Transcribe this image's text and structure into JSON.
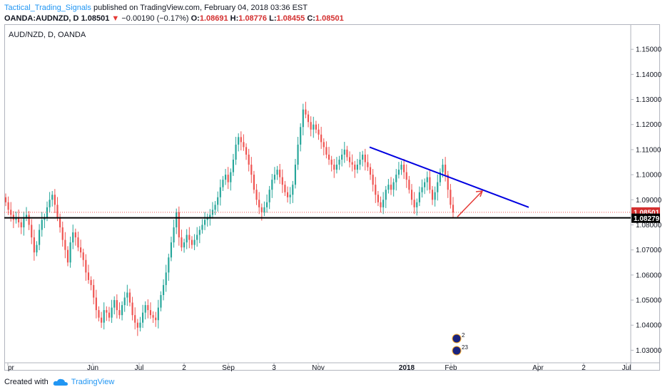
{
  "header": {
    "author": "Tactical_Trading_Signals",
    "published_text": "published on TradingView.com, February 04, 2018 03:36 EST",
    "symbol_line": "OANDA:AUDNZD, D",
    "last": "1.08501",
    "change": "−0.00190 (−0.17%)",
    "o_label": "O:",
    "o": "1.08691",
    "h_label": "H:",
    "h": "1.08776",
    "l_label": "L:",
    "l": "1.08455",
    "c_label": "C:",
    "c": "1.08501"
  },
  "chart_symbol_label": "AUD/NZD, D, OANDA",
  "footer": {
    "created_with": "Created with",
    "brand": "TradingView"
  },
  "colors": {
    "up": "#26a69a",
    "down": "#ef5350",
    "trendline": "#0000e0",
    "support": "#000000",
    "arrow": "#e53935",
    "price_tag": "#d32f2f"
  },
  "chart_data": {
    "type": "candlestick",
    "ylim": [
      1.025,
      1.16
    ],
    "y_ticks": [
      "1.03000",
      "1.04000",
      "1.05000",
      "1.06000",
      "1.07000",
      "1.08000",
      "1.09000",
      "1.10000",
      "1.11000",
      "1.12000",
      "1.13000",
      "1.14000",
      "1.15000"
    ],
    "x_ticks": [
      {
        "label": "pr",
        "bold": false
      },
      {
        "label": "Jun",
        "bold": false
      },
      {
        "label": "Jul",
        "bold": false
      },
      {
        "label": "2",
        "bold": false
      },
      {
        "label": "Sep",
        "bold": false
      },
      {
        "label": "3",
        "bold": false
      },
      {
        "label": "Nov",
        "bold": false
      },
      {
        "label": "2018",
        "bold": true
      },
      {
        "label": "Feb",
        "bold": false
      },
      {
        "label": "Apr",
        "bold": false
      },
      {
        "label": "2",
        "bold": false
      },
      {
        "label": "Jul",
        "bold": false
      }
    ],
    "current_price": "1.08501",
    "support_level": "1.08279",
    "support_value": 1.08279,
    "trendline": {
      "from": 1.111,
      "to": 1.087
    },
    "closes": [
      1.089,
      1.086,
      1.084,
      1.082,
      1.083,
      1.081,
      1.079,
      1.083,
      1.084,
      1.08,
      1.075,
      1.069,
      1.072,
      1.078,
      1.082,
      1.083,
      1.087,
      1.09,
      1.092,
      1.088,
      1.083,
      1.079,
      1.074,
      1.07,
      1.065,
      1.073,
      1.077,
      1.075,
      1.071,
      1.069,
      1.066,
      1.061,
      1.058,
      1.056,
      1.051,
      1.046,
      1.043,
      1.041,
      1.046,
      1.045,
      1.043,
      1.047,
      1.05,
      1.046,
      1.044,
      1.048,
      1.051,
      1.053,
      1.049,
      1.044,
      1.041,
      1.039,
      1.041,
      1.045,
      1.048,
      1.046,
      1.044,
      1.043,
      1.042,
      1.047,
      1.052,
      1.056,
      1.061,
      1.067,
      1.073,
      1.079,
      1.085,
      1.075,
      1.071,
      1.073,
      1.076,
      1.074,
      1.072,
      1.074,
      1.076,
      1.078,
      1.08,
      1.082,
      1.083,
      1.084,
      1.086,
      1.088,
      1.091,
      1.095,
      1.098,
      1.1,
      1.097,
      1.101,
      1.106,
      1.112,
      1.115,
      1.113,
      1.111,
      1.108,
      1.104,
      1.1,
      1.094,
      1.09,
      1.087,
      1.085,
      1.087,
      1.089,
      1.094,
      1.098,
      1.1,
      1.102,
      1.099,
      1.096,
      1.093,
      1.091,
      1.092,
      1.096,
      1.104,
      1.112,
      1.119,
      1.126,
      1.124,
      1.121,
      1.118,
      1.12,
      1.118,
      1.116,
      1.113,
      1.111,
      1.108,
      1.106,
      1.104,
      1.102,
      1.104,
      1.106,
      1.108,
      1.11,
      1.107,
      1.105,
      1.104,
      1.102,
      1.104,
      1.106,
      1.108,
      1.105,
      1.103,
      1.1,
      1.096,
      1.092,
      1.089,
      1.087,
      1.09,
      1.094,
      1.096,
      1.094,
      1.097,
      1.1,
      1.102,
      1.104,
      1.101,
      1.098,
      1.094,
      1.09,
      1.087,
      1.089,
      1.093,
      1.095,
      1.097,
      1.099,
      1.094,
      1.09,
      1.093,
      1.097,
      1.101,
      1.104,
      1.1,
      1.094,
      1.088,
      1.085
    ]
  }
}
